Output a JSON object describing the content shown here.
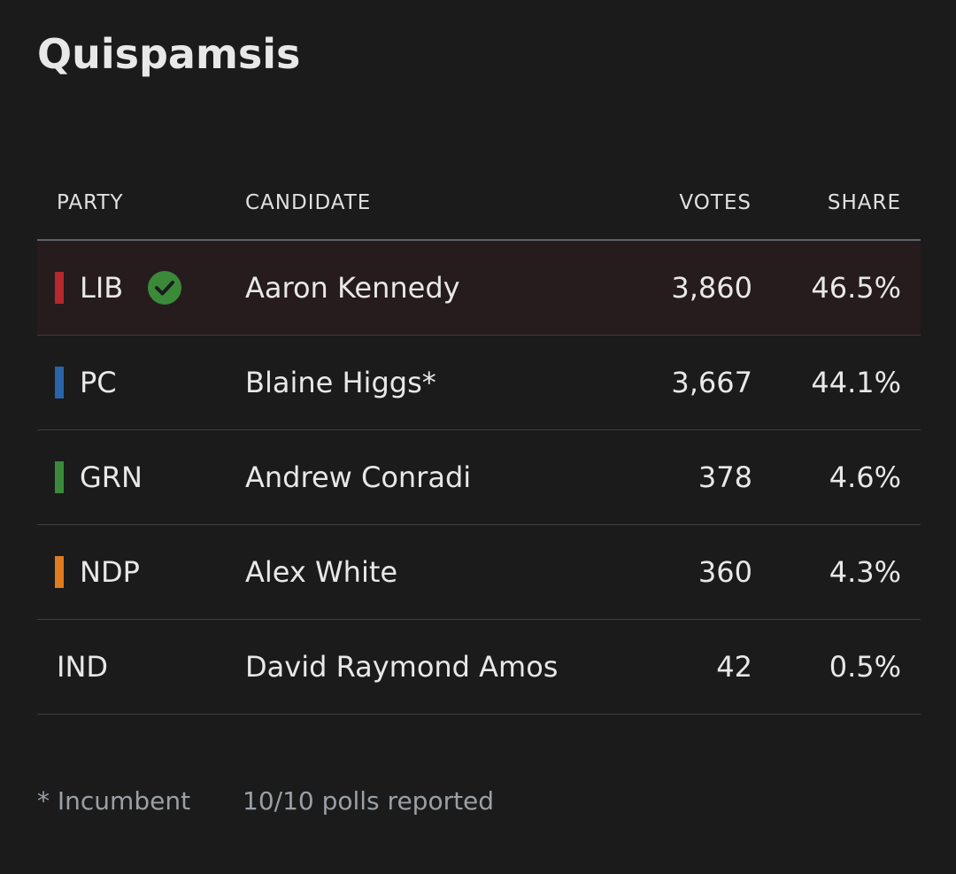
{
  "header": {
    "title": "Quispamsis"
  },
  "table": {
    "columns": [
      "PARTY",
      "CANDIDATE",
      "VOTES",
      "SHARE"
    ],
    "rows": [
      {
        "party": "LIB",
        "color": "#b5282e",
        "winner": true,
        "candidate": "Aaron Kennedy",
        "votes": "3,860",
        "share": "46.5%"
      },
      {
        "party": "PC",
        "color": "#2a64a8",
        "candidate": "Blaine Higgs*",
        "votes": "3,667",
        "share": "44.1%"
      },
      {
        "party": "GRN",
        "color": "#3b8a3a",
        "candidate": "Andrew Conradi",
        "votes": "378",
        "share": "4.6%"
      },
      {
        "party": "NDP",
        "color": "#e07b20",
        "candidate": "Alex White",
        "votes": "360",
        "share": "4.3%"
      },
      {
        "party": "IND",
        "candidate": "David Raymond Amos",
        "votes": "42",
        "share": "0.5%"
      }
    ]
  },
  "footer": {
    "note": "* Incumbent",
    "status": "10/10 polls reported"
  }
}
